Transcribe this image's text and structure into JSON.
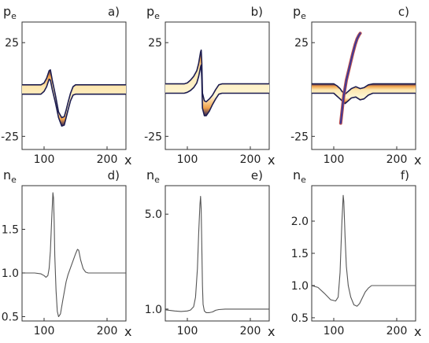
{
  "chart_data": [
    {
      "type": "band",
      "panel_label": "a)",
      "ylabel_var": "p",
      "ylabel_sub": "e",
      "xlabel": "x",
      "xlim": [
        65,
        230
      ],
      "ylim": [
        -32,
        36
      ],
      "x_ticks": [
        100,
        200
      ],
      "y_ticks": [
        25,
        -25
      ],
      "series": [
        {
          "role": "upper_edge",
          "color": "#1d1d4f",
          "x": [
            65,
            95,
            100,
            104,
            106,
            108,
            110,
            113,
            118,
            123,
            128,
            132,
            135,
            138,
            142,
            146,
            150,
            155,
            160,
            230
          ],
          "y": [
            2.5,
            2.5,
            3.5,
            6,
            8,
            10,
            10.5,
            5,
            -3,
            -12,
            -15,
            -14.5,
            -11,
            -7,
            -2,
            1.5,
            2.5,
            2.5,
            2.5,
            2.5
          ]
        },
        {
          "role": "lower_edge",
          "color": "#1d1d4f",
          "x": [
            65,
            95,
            100,
            104,
            106,
            108,
            110,
            113,
            118,
            123,
            128,
            132,
            135,
            138,
            142,
            146,
            150,
            155,
            160,
            230
          ],
          "y": [
            -2.5,
            -2.5,
            -1,
            1.5,
            3.5,
            5.5,
            5,
            0,
            -7,
            -15,
            -19.5,
            -19,
            -15,
            -11,
            -6,
            -3,
            -2.5,
            -2.5,
            -2.5,
            -2.5
          ]
        }
      ]
    },
    {
      "type": "band",
      "panel_label": "b)",
      "ylabel_var": "p",
      "ylabel_sub": "e",
      "xlabel": "x",
      "xlim": [
        65,
        230
      ],
      "ylim": [
        -32,
        36
      ],
      "x_ticks": [
        100,
        200
      ],
      "y_ticks": [
        25,
        -25
      ],
      "series": [
        {
          "role": "upper_edge",
          "color": "#1d1d4f",
          "x": [
            65,
            95,
            100,
            105,
            110,
            115,
            118,
            121,
            122,
            123,
            124,
            127,
            130,
            135,
            140,
            145,
            150,
            155,
            160,
            230
          ],
          "y": [
            3,
            3,
            3.5,
            5,
            7,
            10,
            14,
            20,
            21,
            14,
            -2,
            -6,
            -6.5,
            -5,
            -3,
            0,
            2.5,
            3,
            3,
            3
          ]
        },
        {
          "role": "lower_edge",
          "color": "#1d1d4f",
          "x": [
            65,
            95,
            100,
            105,
            110,
            115,
            118,
            121,
            122,
            123,
            124,
            127,
            130,
            135,
            140,
            145,
            150,
            155,
            160,
            230
          ],
          "y": [
            -2,
            -2,
            -1.5,
            -0.5,
            1,
            3.5,
            7,
            12,
            13,
            5,
            -10,
            -14,
            -14,
            -11.5,
            -8,
            -5,
            -2.5,
            -2,
            -2,
            -2
          ]
        }
      ]
    },
    {
      "type": "band",
      "panel_label": "c)",
      "ylabel_var": "p",
      "ylabel_sub": "e",
      "xlabel": "x",
      "xlim": [
        65,
        230
      ],
      "ylim": [
        -32,
        36
      ],
      "x_ticks": [
        100,
        200
      ],
      "y_ticks": [
        25,
        -25
      ],
      "series": [
        {
          "role": "upper_edge",
          "color": "#1d1d4f",
          "x": [
            65,
            100,
            105,
            110,
            113,
            118,
            123,
            128,
            135,
            142,
            148,
            155,
            162,
            230
          ],
          "y": [
            3,
            3,
            2,
            0.5,
            -1,
            -2.5,
            -1,
            0.5,
            1.5,
            0.5,
            1,
            2.5,
            3,
            3
          ]
        },
        {
          "role": "lower_edge",
          "color": "#1d1d4f",
          "x": [
            65,
            100,
            105,
            110,
            113,
            118,
            123,
            128,
            135,
            142,
            148,
            155,
            162,
            230
          ],
          "y": [
            -2,
            -2,
            -3.5,
            -5,
            -6,
            -7.5,
            -6,
            -4.5,
            -4,
            -5.5,
            -5,
            -3,
            -2,
            -2
          ]
        },
        {
          "role": "curve",
          "color": "#3a3a9a",
          "x": [
            111,
            113,
            116,
            120,
            125,
            130,
            134,
            137,
            140,
            142
          ],
          "y": [
            -18,
            -12,
            -3,
            5,
            12,
            19,
            24,
            27,
            29,
            30
          ]
        }
      ]
    },
    {
      "type": "line",
      "panel_label": "d)",
      "ylabel_var": "n",
      "ylabel_sub": "e",
      "xlabel": "x",
      "xlim": [
        65,
        230
      ],
      "ylim": [
        0.45,
        2.0
      ],
      "x_ticks": [
        100,
        200
      ],
      "y_ticks": [
        1.5,
        1.0,
        0.5
      ],
      "series": [
        {
          "color": "#555555",
          "x": [
            65,
            85,
            95,
            100,
            103,
            106,
            108,
            110,
            112,
            114,
            115,
            116,
            117,
            119,
            121,
            123,
            126,
            130,
            135,
            138,
            142,
            146,
            150,
            153,
            155,
            158,
            162,
            166,
            170,
            175,
            230
          ],
          "y": [
            1.0,
            1.0,
            0.99,
            0.97,
            0.95,
            0.97,
            1.05,
            1.25,
            1.6,
            1.92,
            1.86,
            1.6,
            1.2,
            0.8,
            0.56,
            0.5,
            0.53,
            0.7,
            0.9,
            0.98,
            1.06,
            1.14,
            1.22,
            1.27,
            1.26,
            1.15,
            1.05,
            1.01,
            1.0,
            1.0,
            1.0
          ]
        }
      ]
    },
    {
      "type": "line",
      "panel_label": "e)",
      "ylabel_var": "n",
      "ylabel_sub": "e",
      "xlabel": "x",
      "xlim": [
        65,
        230
      ],
      "ylim": [
        0.5,
        6.2
      ],
      "x_ticks": [
        100,
        200
      ],
      "y_ticks": [
        5.0,
        1.0
      ],
      "series": [
        {
          "color": "#555555",
          "x": [
            65,
            80,
            90,
            100,
            105,
            110,
            113,
            116,
            118,
            120,
            121,
            122,
            123,
            124,
            125,
            127,
            130,
            135,
            140,
            145,
            150,
            160,
            230
          ],
          "y": [
            0.97,
            0.92,
            0.9,
            0.92,
            0.96,
            1.1,
            1.5,
            2.7,
            4.2,
            5.4,
            5.75,
            5.2,
            3.6,
            2.0,
            1.2,
            0.92,
            0.85,
            0.85,
            0.88,
            0.95,
            0.98,
            1.0,
            1.0
          ]
        }
      ]
    },
    {
      "type": "line",
      "panel_label": "f)",
      "ylabel_var": "n",
      "ylabel_sub": "e",
      "xlabel": "x",
      "xlim": [
        65,
        230
      ],
      "ylim": [
        0.45,
        2.55
      ],
      "x_ticks": [
        100,
        200
      ],
      "y_ticks": [
        2.0,
        1.5,
        1.0,
        0.5
      ],
      "series": [
        {
          "color": "#555555",
          "x": [
            65,
            75,
            85,
            95,
            103,
            107,
            110,
            113,
            115,
            116,
            118,
            120,
            123,
            127,
            132,
            137,
            141,
            145,
            150,
            155,
            160,
            165,
            230
          ],
          "y": [
            1.0,
            0.97,
            0.88,
            0.78,
            0.76,
            0.82,
            1.2,
            2.0,
            2.4,
            2.3,
            1.75,
            1.3,
            1.0,
            0.82,
            0.7,
            0.68,
            0.72,
            0.8,
            0.9,
            0.96,
            1.0,
            1.0,
            1.0
          ]
        }
      ]
    }
  ]
}
